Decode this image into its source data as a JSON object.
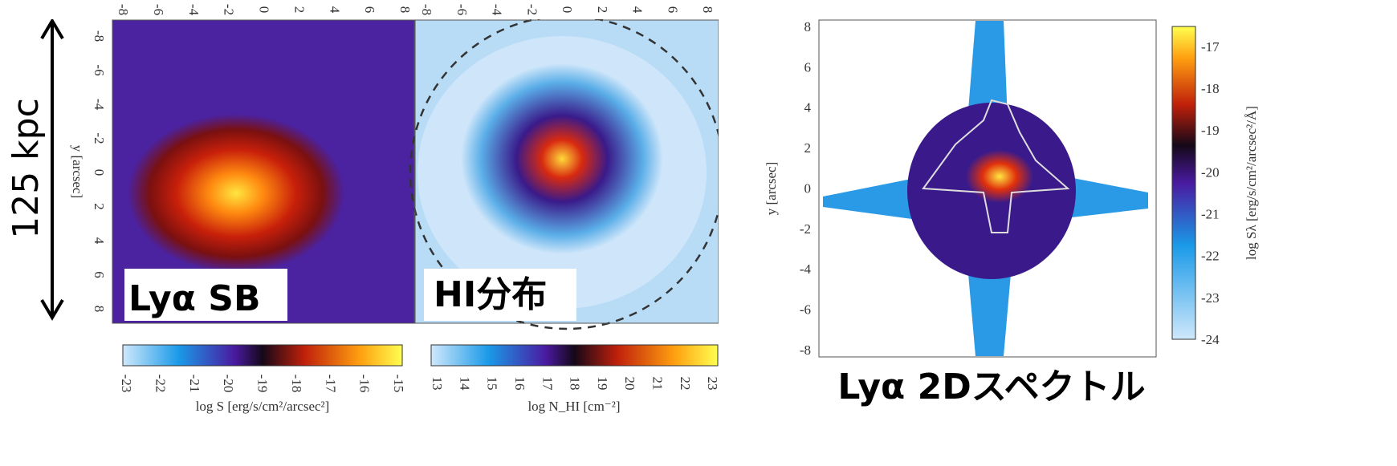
{
  "scale_label": "125 kpc",
  "panels": [
    {
      "label": "Lyα SB",
      "x_ticks": [
        -8,
        -6,
        -4,
        -2,
        0,
        2,
        4,
        6,
        8
      ],
      "y_ticks": [
        -8,
        -6,
        -4,
        -2,
        0,
        2,
        4,
        6,
        8
      ],
      "y_axis_label": "y [arcsec]"
    },
    {
      "label": "HI分布",
      "x_ticks": [
        -8,
        -6,
        -4,
        -2,
        0,
        2,
        4,
        6,
        8
      ]
    }
  ],
  "colorbars": [
    {
      "ticks": [
        -23,
        -22,
        -21,
        -20,
        -19,
        -18,
        -17,
        -16,
        -15
      ],
      "label": "log S [erg/s/cm²/arcsec²]"
    },
    {
      "ticks": [
        13,
        14,
        15,
        16,
        17,
        18,
        19,
        20,
        21,
        22,
        23
      ],
      "label": "log N_HI [cm⁻²]"
    }
  ],
  "spectrum": {
    "caption": "Lyα 2Dスペクトル",
    "y_ticks": [
      8,
      6,
      4,
      2,
      0,
      -2,
      -4,
      -6,
      -8
    ],
    "y_axis_label": "y [arcsec]",
    "colorbar": {
      "ticks": [
        -17,
        -18,
        -19,
        -20,
        -21,
        -22,
        -23,
        -24
      ],
      "label": "log Sλ [erg/s/cm²/arcsec²/Å]"
    }
  }
}
